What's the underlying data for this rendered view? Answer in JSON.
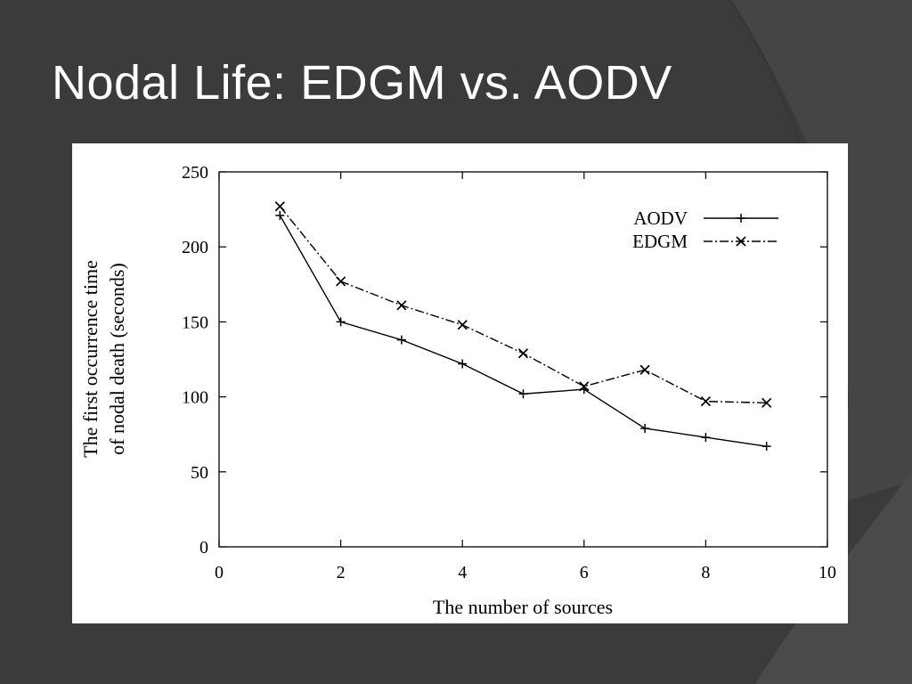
{
  "slide": {
    "title": "Nodal Life: EDGM vs. AODV",
    "background_color": "#3b3b3b",
    "accent_shape_color": "#454545"
  },
  "chart_data": {
    "type": "line",
    "title": "",
    "xlabel": "The number of sources",
    "ylabel_line1": "The first occurrence time",
    "ylabel_line2": "of nodal death (seconds)",
    "xlim": [
      0,
      10
    ],
    "ylim": [
      0,
      250
    ],
    "x_ticks": [
      0,
      2,
      4,
      6,
      8,
      10
    ],
    "y_ticks": [
      0,
      50,
      100,
      150,
      200,
      250
    ],
    "grid": false,
    "legend_position": "top-right",
    "series": [
      {
        "name": "AODV",
        "marker": "plus",
        "line_style": "solid",
        "x": [
          1,
          2,
          3,
          4,
          5,
          6,
          7,
          8,
          9
        ],
        "y": [
          221,
          150,
          138,
          122,
          102,
          105,
          79,
          73,
          67
        ]
      },
      {
        "name": "EDGM",
        "marker": "cross",
        "line_style": "dash-dot",
        "x": [
          1,
          2,
          3,
          4,
          5,
          6,
          7,
          8,
          9
        ],
        "y": [
          227,
          177,
          161,
          148,
          129,
          107,
          118,
          97,
          96
        ]
      }
    ]
  }
}
